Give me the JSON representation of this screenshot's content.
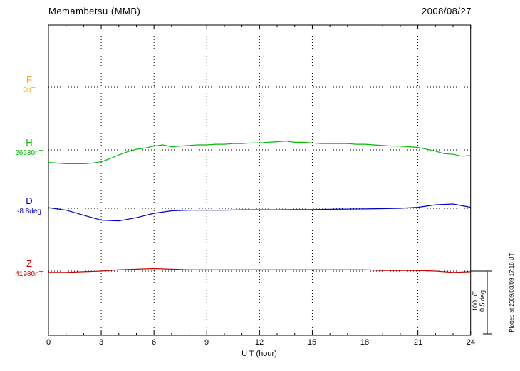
{
  "chart_data": {
    "type": "line",
    "title": "Memambetsu (MMB)",
    "date": "2008/08/27",
    "xlabel": "U T (hour)",
    "x_range": [
      0,
      24
    ],
    "x_tick_step": 3,
    "x_ticks": [
      "0",
      "3",
      "6",
      "9",
      "12",
      "15",
      "18",
      "21",
      "24"
    ],
    "grid": "dotted vertical at 3h intervals, dotted horizontal baseline per component",
    "legend_position": "left of axis",
    "plotted_at": "Plotted at 2009/03/09 17:18 UT",
    "scale_reference": {
      "bar_labels": [
        "100 nT",
        "0.5 deg"
      ],
      "nT_per_bar": 100,
      "deg_per_bar": 0.5
    },
    "series": [
      {
        "key": "F",
        "label": "F",
        "base_label": "0nT",
        "unit": "nT",
        "color": "#FFA500",
        "values": []
      },
      {
        "key": "H",
        "label": "H",
        "base_label": "26230nT",
        "unit": "nT",
        "color": "#00BB00",
        "x_step_hours": 0.5,
        "values": [
          -20,
          -21,
          -22,
          -22,
          -22,
          -21,
          -19,
          -14,
          -8,
          -3,
          1,
          3,
          6,
          8,
          5,
          6,
          7,
          8,
          8,
          9,
          9,
          10,
          10,
          11,
          11,
          12,
          13,
          14,
          12,
          12,
          11,
          10,
          10,
          10,
          10,
          9,
          9,
          8,
          7,
          6,
          6,
          5,
          4,
          1,
          -2,
          -6,
          -7,
          -10,
          -9
        ]
      },
      {
        "key": "D",
        "label": "D",
        "base_label": "-8.8deg",
        "unit": "deg",
        "color": "#0000CC",
        "x_step_hours": 1,
        "values": [
          0.005,
          -0.015,
          -0.055,
          -0.095,
          -0.1,
          -0.075,
          -0.04,
          -0.02,
          -0.015,
          -0.015,
          -0.015,
          -0.012,
          -0.012,
          -0.012,
          -0.01,
          -0.01,
          -0.008,
          -0.006,
          -0.005,
          -0.003,
          0.0,
          0.008,
          0.028,
          0.034,
          0.008
        ]
      },
      {
        "key": "Z",
        "label": "Z",
        "base_label": "41980nT",
        "unit": "nT",
        "color": "#CC0000",
        "x_step_hours": 1,
        "values": [
          -2,
          -2,
          -1,
          0,
          2,
          3,
          4,
          3,
          2,
          2,
          2,
          2,
          2,
          2,
          2,
          2,
          2,
          2,
          2,
          1,
          1,
          1,
          0,
          -2,
          -1
        ]
      }
    ]
  }
}
